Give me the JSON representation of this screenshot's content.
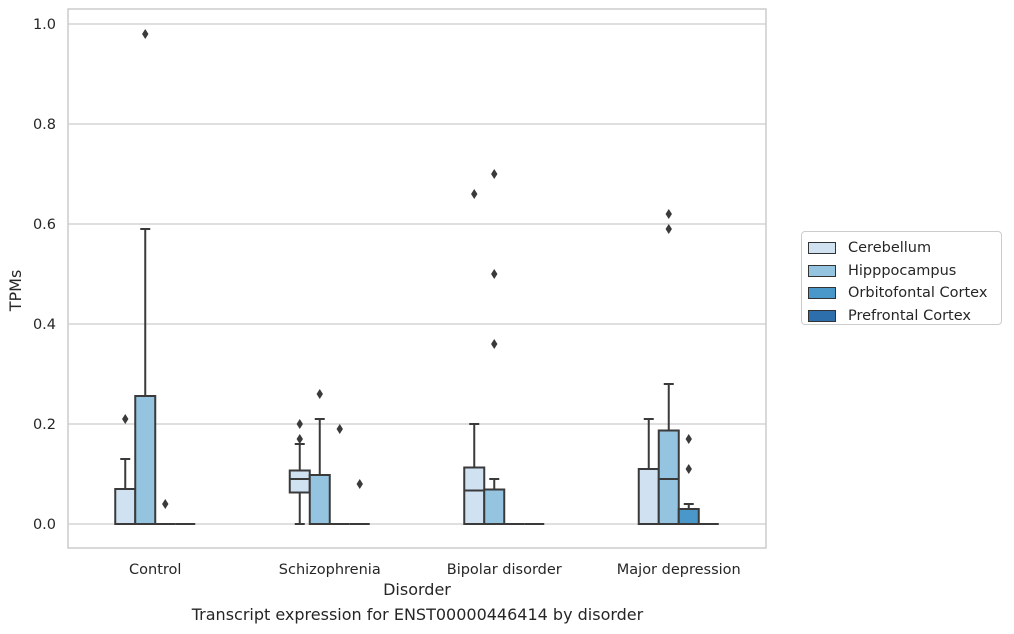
{
  "chart_data": {
    "type": "box",
    "xlabel": "Disorder",
    "ylabel": "TPMs",
    "ylim": [
      -0.045,
      1.03
    ],
    "yticks": [
      "0.0",
      "0.2",
      "0.4",
      "0.6",
      "0.8",
      "1.0"
    ],
    "grid": true,
    "legend_position": "right",
    "categories": [
      "Control",
      "Schizophrenia",
      "Bipolar disorder",
      "Major depression"
    ],
    "series": [
      {
        "name": "Cerebellum",
        "color": "#d0e1f2",
        "boxes": [
          {
            "q1": 0,
            "median": 0,
            "q3": 0.07,
            "whisker_low": 0,
            "whisker_high": 0.13,
            "outliers": [
              0.21
            ]
          },
          {
            "q1": 0.063,
            "median": 0.09,
            "q3": 0.107,
            "whisker_low": 0,
            "whisker_high": 0.16,
            "outliers": [
              0.17,
              0.2
            ]
          },
          {
            "q1": 0,
            "median": 0.067,
            "q3": 0.113,
            "whisker_low": 0,
            "whisker_high": 0.2,
            "outliers": [
              0.66
            ]
          },
          {
            "q1": 0,
            "median": 0,
            "q3": 0.11,
            "whisker_low": 0,
            "whisker_high": 0.21,
            "outliers": []
          }
        ]
      },
      {
        "name": "Hipppocampus",
        "color": "#94c4df",
        "boxes": [
          {
            "q1": 0,
            "median": 0,
            "q3": 0.256,
            "whisker_low": 0,
            "whisker_high": 0.59,
            "outliers": [
              0.98
            ]
          },
          {
            "q1": 0,
            "median": 0,
            "q3": 0.098,
            "whisker_low": 0,
            "whisker_high": 0.21,
            "outliers": [
              0.26
            ]
          },
          {
            "q1": 0,
            "median": 0,
            "q3": 0.069,
            "whisker_low": 0,
            "whisker_high": 0.09,
            "outliers": [
              0.36,
              0.5,
              0.7
            ]
          },
          {
            "q1": 0,
            "median": 0.09,
            "q3": 0.187,
            "whisker_low": 0,
            "whisker_high": 0.28,
            "outliers": [
              0.59,
              0.62
            ]
          }
        ]
      },
      {
        "name": "Orbitofontal Cortex",
        "color": "#4a98c9",
        "boxes": [
          {
            "q1": 0,
            "median": 0,
            "q3": 0,
            "whisker_low": 0,
            "whisker_high": 0,
            "outliers": [
              0.04
            ]
          },
          {
            "q1": 0,
            "median": 0,
            "q3": 0,
            "whisker_low": 0,
            "whisker_high": 0,
            "outliers": [
              0.19
            ]
          },
          {
            "q1": 0,
            "median": 0,
            "q3": 0,
            "whisker_low": 0,
            "whisker_high": 0,
            "outliers": []
          },
          {
            "q1": 0,
            "median": 0,
            "q3": 0.03,
            "whisker_low": 0,
            "whisker_high": 0.04,
            "outliers": [
              0.11,
              0.17
            ]
          }
        ]
      },
      {
        "name": "Prefrontal Cortex",
        "color": "#2d6fad",
        "boxes": [
          {
            "q1": 0,
            "median": 0,
            "q3": 0,
            "whisker_low": 0,
            "whisker_high": 0,
            "outliers": []
          },
          {
            "q1": 0,
            "median": 0,
            "q3": 0,
            "whisker_low": 0,
            "whisker_high": 0,
            "outliers": [
              0.08
            ]
          },
          {
            "q1": 0,
            "median": 0,
            "q3": 0,
            "whisker_low": 0,
            "whisker_high": 0,
            "outliers": []
          },
          {
            "q1": 0,
            "median": 0,
            "q3": 0,
            "whisker_low": 0,
            "whisker_high": 0,
            "outliers": []
          }
        ]
      }
    ]
  },
  "caption": "Transcript expression for ENST00000446414 by disorder"
}
